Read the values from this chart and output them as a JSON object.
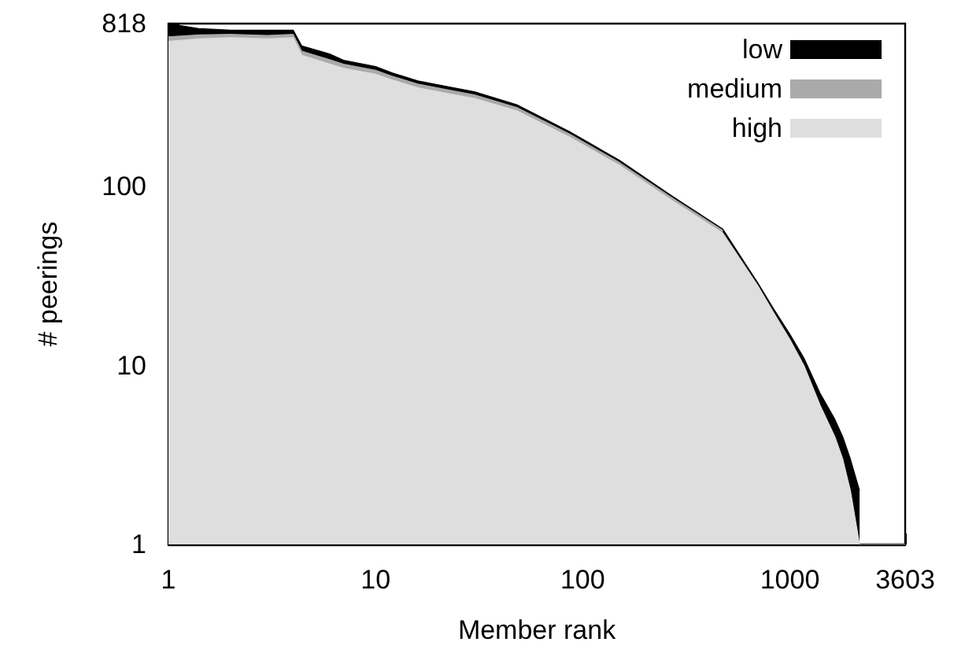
{
  "chart_data": {
    "type": "area",
    "stacked": true,
    "log": "xy",
    "xlabel": "Member rank",
    "ylabel": "# peerings",
    "x": [
      1,
      1.4,
      2,
      3,
      4,
      4.4,
      6,
      7,
      10,
      12,
      16,
      23,
      30,
      48,
      86,
      150,
      265,
      475,
      700,
      830,
      1000,
      1170,
      1400,
      1650,
      1800,
      1960,
      2170,
      3000,
      3603
    ],
    "series": [
      {
        "name": "high",
        "color": "#dedede",
        "values": [
          650,
          672,
          682,
          672,
          682,
          544,
          486,
          460,
          426,
          396,
          358,
          330,
          312,
          266,
          190,
          132,
          85,
          55,
          28,
          20,
          14,
          10,
          6,
          4,
          3,
          2,
          1,
          1,
          1
        ]
      },
      {
        "name": "medium",
        "color": "#aaaaaa",
        "values": [
          40,
          35,
          30,
          30,
          30,
          30,
          28,
          25,
          22,
          20,
          18,
          16,
          15,
          12,
          8,
          5,
          3,
          2,
          null,
          null,
          null,
          null,
          null,
          null,
          null,
          null,
          null,
          null,
          null
        ]
      },
      {
        "name": "low",
        "color": "#000000",
        "values": [
          128,
          60,
          40,
          50,
          40,
          40,
          40,
          25,
          23,
          18,
          15,
          15,
          13,
          10,
          6,
          4,
          2,
          1,
          1,
          1,
          1,
          1,
          1,
          1,
          1,
          1,
          1,
          null,
          null
        ]
      }
    ],
    "xlim": [
      1,
      3603
    ],
    "ylim": [
      1,
      818
    ],
    "xticks": [
      1,
      10,
      100,
      1000,
      3603
    ],
    "yticks": [
      1,
      10,
      100,
      818
    ],
    "grid": false,
    "legend": "top right"
  }
}
